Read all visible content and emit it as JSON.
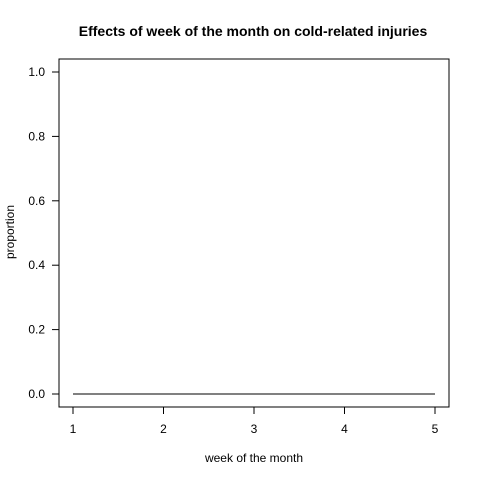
{
  "chart_data": {
    "type": "line",
    "title": "Effects of week of the month on cold-related injuries",
    "xlabel": "week of the month",
    "ylabel": "proportion",
    "x": [
      1,
      2,
      3,
      4,
      5
    ],
    "series": [
      {
        "values": [
          0,
          0,
          0,
          0,
          0
        ]
      }
    ],
    "xlim": [
      1,
      5
    ],
    "ylim": [
      0,
      1
    ],
    "xticks": [
      1,
      2,
      3,
      4,
      5
    ],
    "yticks": [
      0,
      0.2,
      0.4,
      0.6,
      0.8,
      1
    ],
    "xtick_labels": [
      "1",
      "2",
      "3",
      "4",
      "5"
    ],
    "ytick_labels": [
      "0.0",
      "0.2",
      "0.4",
      "0.6",
      "0.8",
      "1.0"
    ],
    "grid": false,
    "line_color": "#000000"
  }
}
